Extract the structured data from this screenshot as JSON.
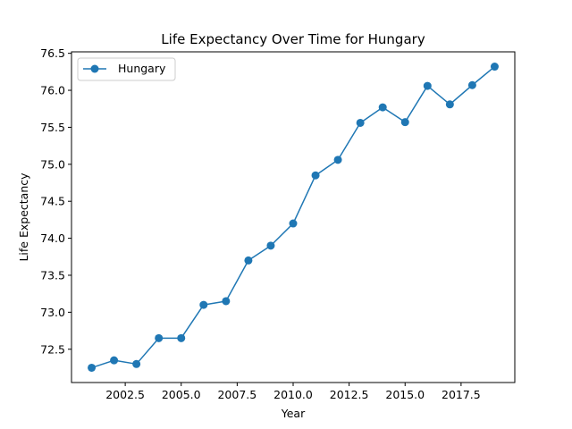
{
  "chart_data": {
    "type": "line",
    "title": "Life Expectancy Over Time for Hungary",
    "xlabel": "Year",
    "ylabel": "Life Expectancy",
    "xlim": [
      2000.1,
      2019.9
    ],
    "ylim": [
      72.05,
      76.52
    ],
    "x_ticks": [
      2002.5,
      2005.0,
      2007.5,
      2010.0,
      2012.5,
      2015.0,
      2017.5
    ],
    "x_tick_labels": [
      "2002.5",
      "2005.0",
      "2007.5",
      "2010.0",
      "2012.5",
      "2015.0",
      "2017.5"
    ],
    "y_ticks": [
      72.5,
      73.0,
      73.5,
      74.0,
      74.5,
      75.0,
      75.5,
      76.0,
      76.5
    ],
    "y_tick_labels": [
      "72.5",
      "73.0",
      "73.5",
      "74.0",
      "74.5",
      "75.0",
      "75.5",
      "76.0",
      "76.5"
    ],
    "grid": false,
    "legend_position": "upper-left",
    "series": [
      {
        "name": "Hungary",
        "color": "#1f77b4",
        "marker": "circle",
        "x": [
          2001,
          2002,
          2003,
          2004,
          2005,
          2006,
          2007,
          2008,
          2009,
          2010,
          2011,
          2012,
          2013,
          2014,
          2015,
          2016,
          2017,
          2018,
          2019
        ],
        "y": [
          72.25,
          72.35,
          72.3,
          72.65,
          72.65,
          73.1,
          73.15,
          73.7,
          73.9,
          74.2,
          74.85,
          75.06,
          75.56,
          75.77,
          75.57,
          76.06,
          75.81,
          76.07,
          76.32
        ]
      }
    ]
  }
}
